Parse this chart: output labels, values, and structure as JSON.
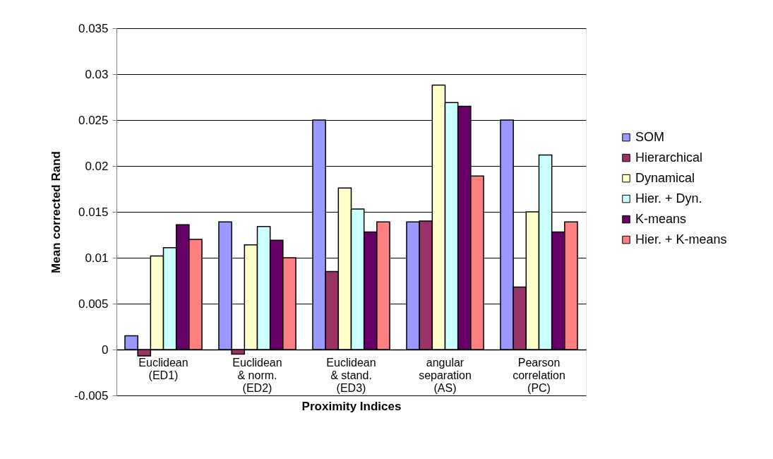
{
  "chart_data": {
    "type": "bar",
    "xlabel": "Proximity Indices",
    "ylabel": "Mean corrected Rand",
    "categories": [
      "Euclidean\n(ED1)",
      "Euclidean\n& norm.\n(ED2)",
      "Euclidean\n& stand.\n(ED3)",
      "angular\nseparation\n(AS)",
      "Pearson\ncorrelation\n(PC)"
    ],
    "series": [
      {
        "name": "SOM",
        "color": "#9999ff",
        "values": [
          0.0015,
          0.0139,
          0.025,
          0.0139,
          0.025
        ]
      },
      {
        "name": "Hierarchical",
        "color": "#993366",
        "values": [
          -0.0007,
          -0.0005,
          0.0085,
          0.014,
          0.0068
        ]
      },
      {
        "name": "Dynamical",
        "color": "#ffffcc",
        "values": [
          0.0102,
          0.0114,
          0.0176,
          0.0288,
          0.015
        ]
      },
      {
        "name": "Hier. + Dyn.",
        "color": "#ccffff",
        "values": [
          0.0111,
          0.0134,
          0.0153,
          0.0269,
          0.0212
        ]
      },
      {
        "name": "K-means",
        "color": "#660066",
        "values": [
          0.0136,
          0.0119,
          0.0128,
          0.0265,
          0.0128
        ]
      },
      {
        "name": "Hier. + K-means",
        "color": "#ff8080",
        "values": [
          0.012,
          0.01,
          0.0139,
          0.0189,
          0.0139
        ]
      }
    ],
    "ylim": [
      -0.005,
      0.035
    ],
    "yticks": [
      -0.005,
      0,
      0.005,
      0.01,
      0.015,
      0.02,
      0.025,
      0.03,
      0.035
    ],
    "grid": "y",
    "legend": "right"
  }
}
